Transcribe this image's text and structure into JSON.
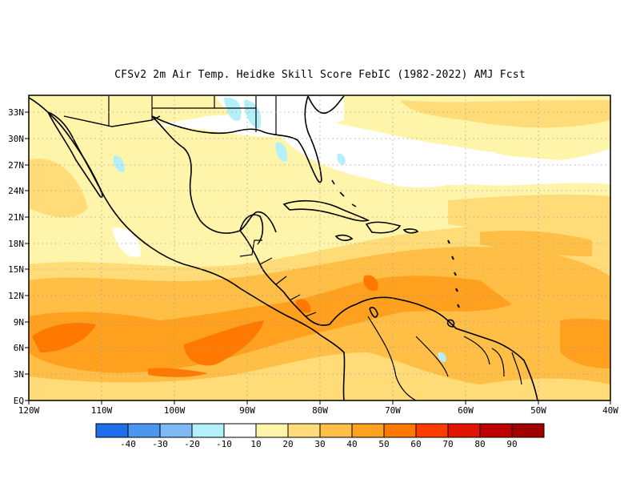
{
  "title": "CFSv2  2m Air Temp. Heidke Skill Score FebIC (1982-2022) AMJ Fcst",
  "map": {
    "lon_range": [
      -120,
      -40
    ],
    "lat_range": [
      0,
      35
    ],
    "x_ticks": [
      "120W",
      "110W",
      "100W",
      "90W",
      "80W",
      "70W",
      "60W",
      "50W",
      "40W"
    ],
    "y_ticks": [
      "EQ",
      "3N",
      "6N",
      "9N",
      "12N",
      "15N",
      "18N",
      "21N",
      "24N",
      "27N",
      "30N",
      "33N"
    ]
  },
  "colorbar": {
    "labels": [
      "-40",
      "-30",
      "-20",
      "-10",
      "10",
      "20",
      "30",
      "40",
      "50",
      "60",
      "70",
      "80",
      "90"
    ],
    "colors": [
      "#1e6eeb",
      "#4b96f0",
      "#7db9f5",
      "#b4f0fa",
      "#ffffff",
      "#fff5aa",
      "#ffdc78",
      "#ffbe46",
      "#ffa01e",
      "#ff7800",
      "#ff3c00",
      "#e11400",
      "#be0000",
      "#a00000"
    ]
  },
  "field_colors": {
    "c10": "#ffffff",
    "c20": "#fff5aa",
    "c30": "#ffdc78",
    "c40": "#ffbe46",
    "c50": "#ffa01e",
    "c60": "#ff7800",
    "cm10": "#b4f0fa"
  }
}
